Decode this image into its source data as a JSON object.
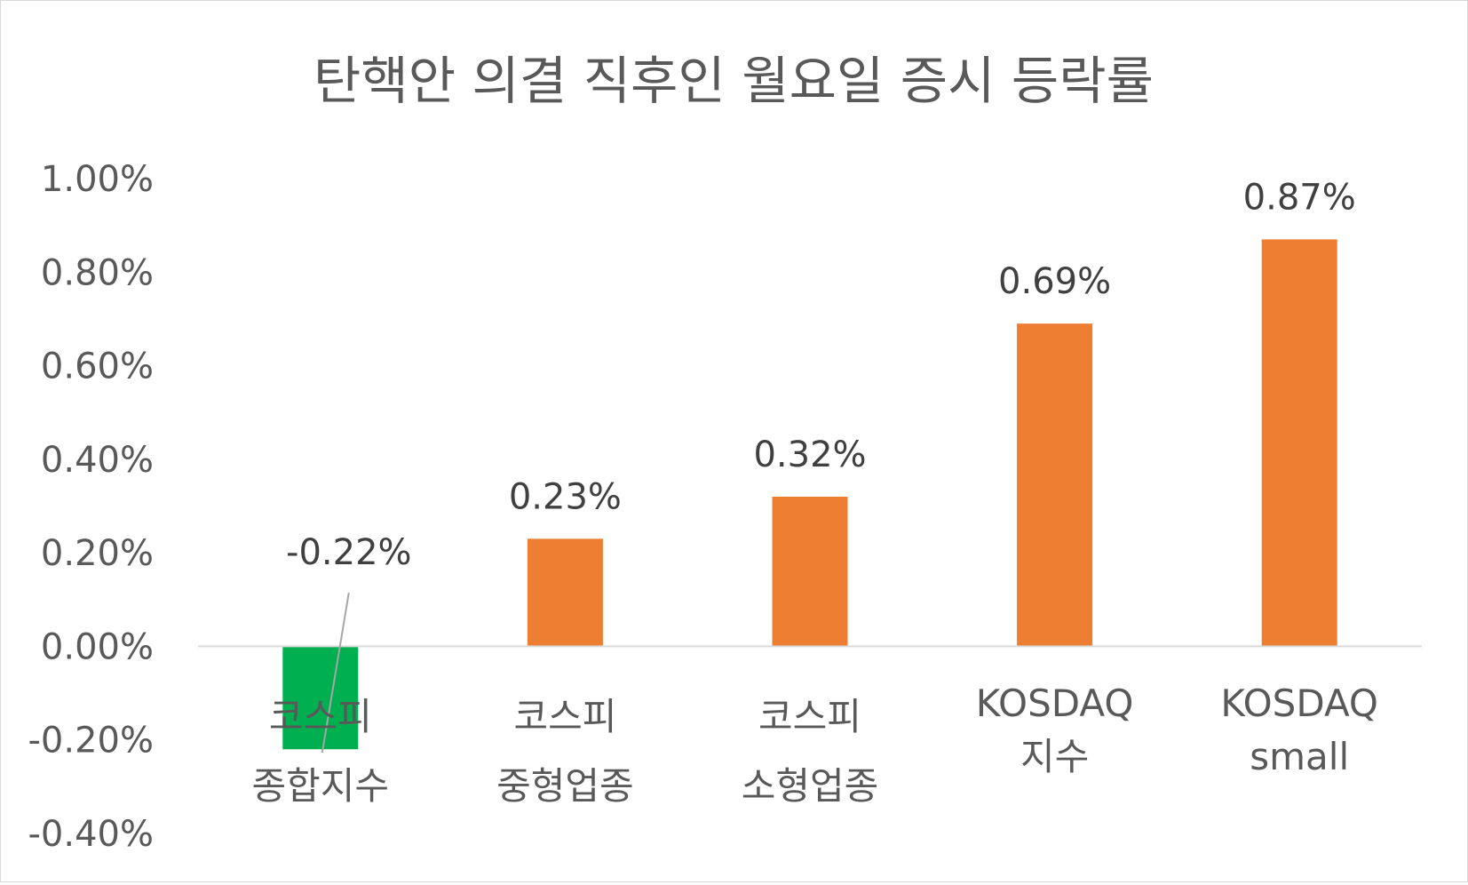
{
  "chart_data": {
    "type": "bar",
    "title": "탄핵안 의결 직후인 월요일 증시 등락률",
    "categories": [
      [
        "코스피",
        "종합지수"
      ],
      [
        "코스피",
        "중형업종"
      ],
      [
        "코스피",
        "소형업종"
      ],
      [
        "KOSDAQ",
        "지수"
      ],
      [
        "KOSDAQ",
        "small"
      ]
    ],
    "values": [
      -0.22,
      0.23,
      0.32,
      0.69,
      0.87
    ],
    "data_labels": [
      "-0.22%",
      "0.23%",
      "0.32%",
      "0.69%",
      "0.87%"
    ],
    "colors": [
      "#00b050",
      "#ed7d31",
      "#ed7d31",
      "#ed7d31",
      "#ed7d31"
    ],
    "ylim": [
      -0.4,
      1.0
    ],
    "y_ticks": [
      1.0,
      0.8,
      0.6,
      0.4,
      0.2,
      0.0,
      -0.2,
      -0.4
    ],
    "y_tick_labels": [
      "1.00%",
      "0.80%",
      "0.60%",
      "0.40%",
      "0.20%",
      "0.00%",
      "-0.20%",
      "-0.40%"
    ],
    "grid": false,
    "legend": "none",
    "xlabel": "",
    "ylabel": ""
  }
}
